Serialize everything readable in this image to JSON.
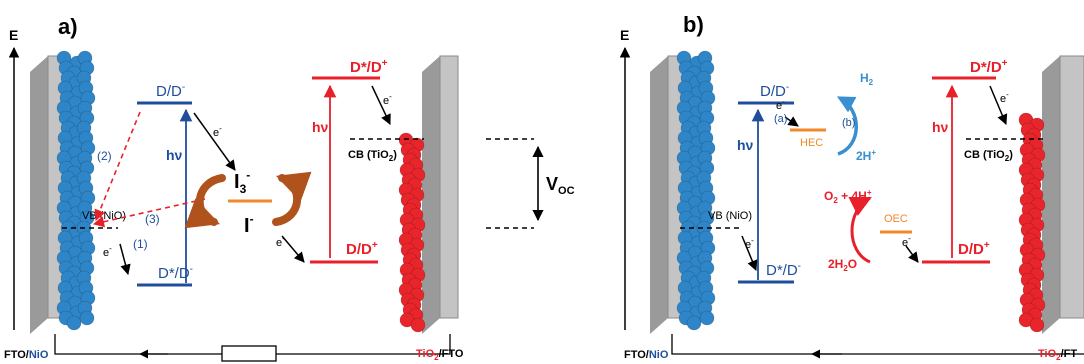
{
  "colors": {
    "blue": "#1f4e9c",
    "red": "#e8202a",
    "orange": "#f0892a",
    "brown": "#b0521c",
    "lightblue": "#3a8fd0",
    "sphere_blue": "#2e86c8",
    "sphere_red": "#e8252b",
    "plate_gray": "#b9b9b9"
  },
  "panel_a": {
    "label": "a)",
    "energy_axis": "E",
    "photocathode": {
      "vb": "VB (NiO)",
      "ground": "D/D",
      "ground_sup": "-",
      "excited": "D*/D",
      "excited_sup": "-",
      "hv": "hν",
      "electron": "e",
      "electron_sup": "-"
    },
    "photoanode": {
      "cb": "CB (TiO",
      "cb_sub": "2",
      "cb_end": ")",
      "excited": "D*/D",
      "excited_sup": "+",
      "ground": "D/D",
      "ground_sup": "+",
      "hv": "hν"
    },
    "redox": {
      "oxidized": "I",
      "oxidized_sub": "3",
      "oxidized_sup": "-",
      "reduced": "I",
      "reduced_sup": "-"
    },
    "steps": [
      "(1)",
      "(2)",
      "(3)"
    ],
    "voc": "V",
    "voc_sub": "OC",
    "label_left": [
      "FTO/",
      "NiO"
    ],
    "label_right": [
      "TiO",
      "2",
      "/FTO"
    ]
  },
  "panel_b": {
    "label": "b)",
    "energy_axis": "E",
    "photocathode": {
      "vb": "VB (NiO)",
      "ground": "D/D",
      "ground_sup": "-",
      "excited": "D*/D",
      "excited_sup": "-",
      "hv": "hν"
    },
    "photoanode": {
      "cb": "CB (TiO",
      "cb_sub": "2",
      "cb_end": ")",
      "excited": "D*/D",
      "excited_sup": "+",
      "ground": "D/D",
      "ground_sup": "+",
      "hv": "hν"
    },
    "hec": {
      "label": "HEC",
      "step_a": "(a)",
      "step_b": "(b)",
      "h2": "H",
      "h2_sub": "2",
      "protons": "2H",
      "protons_sup": "+"
    },
    "oec": {
      "label": "OEC",
      "product": "O",
      "product_sub": "2",
      "product_rest": " + 4H",
      "product_sup": "+",
      "reactant": "2H",
      "reactant_sub": "2",
      "reactant_rest": "O"
    },
    "label_left": [
      "FTO/",
      "NiO"
    ],
    "label_right": [
      "TiO",
      "2",
      "/FT"
    ]
  }
}
